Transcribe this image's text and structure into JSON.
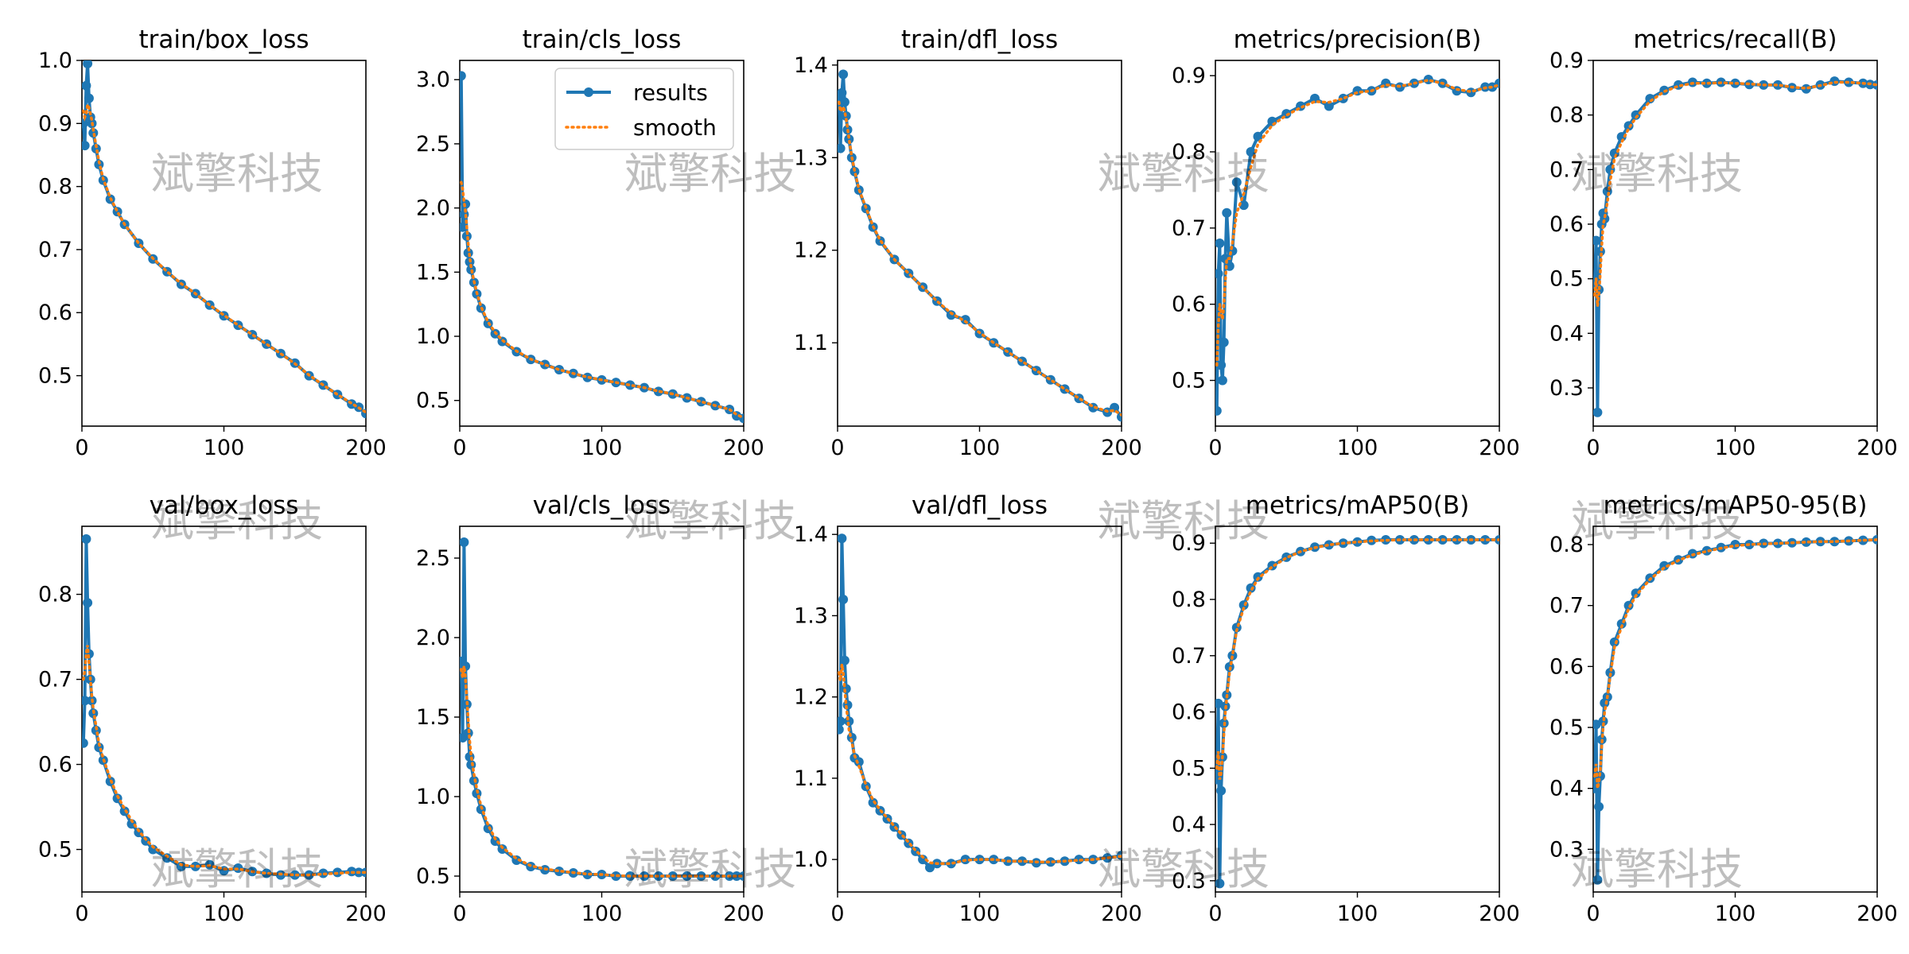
{
  "watermark": "斌擎科技",
  "legend": {
    "results_label": "results",
    "smooth_label": "smooth",
    "placement": "upper-right of train/cls_loss panel"
  },
  "colors": {
    "results": "#1f77b4",
    "smooth": "#ff7f0e",
    "axes": "#000000",
    "background": "#ffffff"
  },
  "chart_data": [
    {
      "type": "line",
      "title": "train/box_loss",
      "xlim": [
        0,
        200
      ],
      "ylim": [
        0.42,
        1.0
      ],
      "xticks": [
        0,
        100,
        200
      ],
      "yticks": [
        0.5,
        0.6,
        0.7,
        0.8,
        0.9,
        1.0
      ],
      "xtick_labels": [
        "0",
        "100",
        "200"
      ],
      "ytick_labels": [
        "0.5",
        "0.6",
        "0.7",
        "0.8",
        "0.9",
        "1.0"
      ],
      "x": [
        1,
        2,
        3,
        4,
        5,
        6,
        7,
        8,
        10,
        12,
        15,
        20,
        25,
        30,
        40,
        50,
        60,
        70,
        80,
        90,
        100,
        110,
        120,
        130,
        140,
        150,
        160,
        170,
        180,
        190,
        195,
        200
      ],
      "values": [
        0.9,
        0.865,
        0.96,
        0.995,
        0.94,
        0.91,
        0.9,
        0.885,
        0.86,
        0.835,
        0.81,
        0.78,
        0.76,
        0.74,
        0.71,
        0.685,
        0.665,
        0.645,
        0.63,
        0.612,
        0.595,
        0.58,
        0.565,
        0.55,
        0.535,
        0.52,
        0.5,
        0.485,
        0.47,
        0.455,
        0.45,
        0.44
      ],
      "smooth": [
        0.92,
        0.91,
        0.915,
        0.93,
        0.925,
        0.915,
        0.905,
        0.89,
        0.865,
        0.84,
        0.812,
        0.782,
        0.76,
        0.74,
        0.71,
        0.686,
        0.665,
        0.646,
        0.63,
        0.612,
        0.596,
        0.58,
        0.565,
        0.55,
        0.535,
        0.519,
        0.501,
        0.485,
        0.47,
        0.456,
        0.449,
        0.442
      ]
    },
    {
      "type": "line",
      "title": "train/cls_loss",
      "xlim": [
        0,
        200
      ],
      "ylim": [
        0.3,
        3.15
      ],
      "xticks": [
        0,
        100,
        200
      ],
      "yticks": [
        0.5,
        1.0,
        1.5,
        2.0,
        2.5,
        3.0
      ],
      "xtick_labels": [
        "0",
        "100",
        "200"
      ],
      "ytick_labels": [
        "0.5",
        "1.0",
        "1.5",
        "2.0",
        "2.5",
        "3.0"
      ],
      "x": [
        1,
        2,
        3,
        4,
        5,
        6,
        7,
        8,
        10,
        12,
        15,
        20,
        25,
        30,
        40,
        50,
        60,
        70,
        80,
        90,
        100,
        110,
        120,
        130,
        140,
        150,
        160,
        170,
        180,
        190,
        195,
        200
      ],
      "values": [
        3.03,
        1.85,
        1.95,
        2.03,
        1.78,
        1.65,
        1.58,
        1.52,
        1.42,
        1.33,
        1.22,
        1.1,
        1.02,
        0.96,
        0.88,
        0.82,
        0.78,
        0.74,
        0.71,
        0.68,
        0.66,
        0.64,
        0.62,
        0.6,
        0.57,
        0.55,
        0.52,
        0.49,
        0.46,
        0.43,
        0.38,
        0.36
      ],
      "smooth": [
        2.2,
        2.15,
        2.05,
        1.98,
        1.85,
        1.72,
        1.62,
        1.54,
        1.43,
        1.34,
        1.23,
        1.11,
        1.03,
        0.97,
        0.885,
        0.822,
        0.778,
        0.74,
        0.71,
        0.682,
        0.66,
        0.64,
        0.62,
        0.6,
        0.572,
        0.55,
        0.52,
        0.49,
        0.46,
        0.43,
        0.39,
        0.365
      ]
    },
    {
      "type": "line",
      "title": "train/dfl_loss",
      "xlim": [
        0,
        200
      ],
      "ylim": [
        1.01,
        1.405
      ],
      "xticks": [
        0,
        100,
        200
      ],
      "yticks": [
        1.1,
        1.2,
        1.3,
        1.4
      ],
      "xtick_labels": [
        "0",
        "100",
        "200"
      ],
      "ytick_labels": [
        "1.1",
        "1.2",
        "1.3",
        "1.4"
      ],
      "x": [
        1,
        2,
        3,
        4,
        5,
        6,
        7,
        8,
        10,
        12,
        15,
        20,
        25,
        30,
        40,
        50,
        60,
        70,
        80,
        90,
        100,
        110,
        120,
        130,
        140,
        150,
        160,
        170,
        180,
        190,
        195,
        200
      ],
      "values": [
        1.365,
        1.31,
        1.37,
        1.39,
        1.36,
        1.345,
        1.33,
        1.32,
        1.3,
        1.285,
        1.265,
        1.245,
        1.225,
        1.21,
        1.19,
        1.175,
        1.16,
        1.145,
        1.13,
        1.125,
        1.11,
        1.1,
        1.09,
        1.08,
        1.07,
        1.06,
        1.05,
        1.04,
        1.03,
        1.025,
        1.03,
        1.02
      ],
      "smooth": [
        1.36,
        1.35,
        1.352,
        1.355,
        1.35,
        1.342,
        1.332,
        1.321,
        1.301,
        1.286,
        1.266,
        1.246,
        1.226,
        1.211,
        1.19,
        1.175,
        1.16,
        1.145,
        1.132,
        1.123,
        1.111,
        1.1,
        1.09,
        1.08,
        1.07,
        1.06,
        1.05,
        1.04,
        1.031,
        1.026,
        1.027,
        1.022
      ]
    },
    {
      "type": "line",
      "title": "metrics/precision(B)",
      "xlim": [
        0,
        200
      ],
      "ylim": [
        0.44,
        0.92
      ],
      "xticks": [
        0,
        100,
        200
      ],
      "yticks": [
        0.5,
        0.6,
        0.7,
        0.8,
        0.9
      ],
      "xtick_labels": [
        "0",
        "100",
        "200"
      ],
      "ytick_labels": [
        "0.5",
        "0.6",
        "0.7",
        "0.8",
        "0.9"
      ],
      "x": [
        1,
        2,
        3,
        4,
        5,
        6,
        7,
        8,
        10,
        12,
        15,
        20,
        25,
        30,
        40,
        50,
        60,
        70,
        80,
        90,
        100,
        110,
        120,
        130,
        140,
        150,
        160,
        170,
        180,
        190,
        195,
        200
      ],
      "values": [
        0.46,
        0.64,
        0.68,
        0.52,
        0.5,
        0.55,
        0.66,
        0.72,
        0.65,
        0.67,
        0.76,
        0.73,
        0.8,
        0.82,
        0.84,
        0.85,
        0.86,
        0.87,
        0.86,
        0.87,
        0.88,
        0.88,
        0.89,
        0.885,
        0.89,
        0.895,
        0.89,
        0.88,
        0.878,
        0.885,
        0.885,
        0.89
      ],
      "smooth": [
        0.52,
        0.57,
        0.6,
        0.59,
        0.58,
        0.6,
        0.63,
        0.66,
        0.66,
        0.68,
        0.72,
        0.745,
        0.78,
        0.81,
        0.835,
        0.848,
        0.858,
        0.866,
        0.865,
        0.87,
        0.878,
        0.88,
        0.888,
        0.886,
        0.89,
        0.894,
        0.89,
        0.882,
        0.879,
        0.884,
        0.885,
        0.888
      ]
    },
    {
      "type": "line",
      "title": "metrics/recall(B)",
      "xlim": [
        0,
        200
      ],
      "ylim": [
        0.23,
        0.9
      ],
      "xticks": [
        0,
        100,
        200
      ],
      "yticks": [
        0.3,
        0.4,
        0.5,
        0.6,
        0.7,
        0.8,
        0.9
      ],
      "xtick_labels": [
        "0",
        "100",
        "200"
      ],
      "ytick_labels": [
        "0.3",
        "0.4",
        "0.5",
        "0.6",
        "0.7",
        "0.8",
        "0.9"
      ],
      "x": [
        1,
        2,
        3,
        4,
        5,
        6,
        7,
        8,
        10,
        12,
        15,
        20,
        25,
        30,
        40,
        50,
        60,
        70,
        80,
        90,
        100,
        110,
        120,
        130,
        140,
        150,
        160,
        170,
        180,
        190,
        195,
        200
      ],
      "values": [
        0.49,
        0.57,
        0.255,
        0.48,
        0.55,
        0.6,
        0.62,
        0.61,
        0.66,
        0.7,
        0.73,
        0.76,
        0.78,
        0.8,
        0.83,
        0.845,
        0.855,
        0.86,
        0.858,
        0.86,
        0.858,
        0.856,
        0.855,
        0.855,
        0.85,
        0.848,
        0.855,
        0.862,
        0.86,
        0.858,
        0.856,
        0.855
      ],
      "smooth": [
        0.47,
        0.5,
        0.45,
        0.47,
        0.51,
        0.56,
        0.6,
        0.61,
        0.64,
        0.68,
        0.72,
        0.75,
        0.775,
        0.795,
        0.825,
        0.843,
        0.853,
        0.858,
        0.858,
        0.859,
        0.858,
        0.857,
        0.855,
        0.855,
        0.851,
        0.849,
        0.854,
        0.86,
        0.86,
        0.858,
        0.857,
        0.855
      ]
    },
    {
      "type": "line",
      "title": "val/box_loss",
      "xlim": [
        0,
        200
      ],
      "ylim": [
        0.45,
        0.88
      ],
      "xticks": [
        0,
        100,
        200
      ],
      "yticks": [
        0.5,
        0.6,
        0.7,
        0.8
      ],
      "xtick_labels": [
        "0",
        "100",
        "200"
      ],
      "ytick_labels": [
        "0.5",
        "0.6",
        "0.7",
        "0.8"
      ],
      "x": [
        1,
        2,
        3,
        4,
        5,
        6,
        7,
        8,
        10,
        12,
        15,
        20,
        25,
        30,
        35,
        40,
        45,
        50,
        60,
        70,
        80,
        90,
        100,
        110,
        120,
        130,
        140,
        150,
        160,
        170,
        180,
        190,
        195,
        200
      ],
      "values": [
        0.625,
        0.675,
        0.865,
        0.79,
        0.73,
        0.7,
        0.675,
        0.66,
        0.64,
        0.62,
        0.605,
        0.58,
        0.56,
        0.545,
        0.53,
        0.52,
        0.51,
        0.5,
        0.49,
        0.48,
        0.48,
        0.482,
        0.475,
        0.478,
        0.474,
        0.472,
        0.47,
        0.47,
        0.47,
        0.472,
        0.473,
        0.474,
        0.473,
        0.473
      ],
      "smooth": [
        0.7,
        0.71,
        0.73,
        0.74,
        0.72,
        0.7,
        0.68,
        0.665,
        0.645,
        0.625,
        0.607,
        0.583,
        0.563,
        0.548,
        0.534,
        0.522,
        0.512,
        0.503,
        0.492,
        0.482,
        0.48,
        0.481,
        0.477,
        0.477,
        0.474,
        0.472,
        0.471,
        0.47,
        0.47,
        0.471,
        0.472,
        0.473,
        0.473,
        0.473
      ]
    },
    {
      "type": "line",
      "title": "val/cls_loss",
      "xlim": [
        0,
        200
      ],
      "ylim": [
        0.4,
        2.7
      ],
      "xticks": [
        0,
        100,
        200
      ],
      "yticks": [
        0.5,
        1.0,
        1.5,
        2.0,
        2.5
      ],
      "xtick_labels": [
        "0",
        "100",
        "200"
      ],
      "ytick_labels": [
        "0.5",
        "1.0",
        "1.5",
        "2.0",
        "2.5"
      ],
      "x": [
        1,
        2,
        3,
        4,
        5,
        6,
        7,
        8,
        10,
        12,
        15,
        20,
        25,
        30,
        40,
        50,
        60,
        70,
        80,
        90,
        100,
        110,
        120,
        130,
        140,
        150,
        160,
        170,
        180,
        190,
        195,
        200
      ],
      "values": [
        1.85,
        1.37,
        2.6,
        1.82,
        1.58,
        1.4,
        1.25,
        1.2,
        1.1,
        1.02,
        0.92,
        0.8,
        0.72,
        0.67,
        0.6,
        0.56,
        0.54,
        0.53,
        0.52,
        0.51,
        0.51,
        0.5,
        0.5,
        0.5,
        0.5,
        0.5,
        0.5,
        0.5,
        0.5,
        0.5,
        0.5,
        0.5
      ],
      "smooth": [
        1.8,
        1.75,
        1.82,
        1.75,
        1.62,
        1.48,
        1.35,
        1.26,
        1.14,
        1.05,
        0.94,
        0.82,
        0.735,
        0.68,
        0.61,
        0.565,
        0.545,
        0.532,
        0.522,
        0.513,
        0.51,
        0.503,
        0.5,
        0.5,
        0.5,
        0.5,
        0.5,
        0.5,
        0.5,
        0.5,
        0.5,
        0.5
      ]
    },
    {
      "type": "line",
      "title": "val/dfl_loss",
      "xlim": [
        0,
        200
      ],
      "ylim": [
        0.96,
        1.41
      ],
      "xticks": [
        0,
        100,
        200
      ],
      "yticks": [
        1.0,
        1.1,
        1.2,
        1.3,
        1.4
      ],
      "xtick_labels": [
        "0",
        "100",
        "200"
      ],
      "ytick_labels": [
        "1.0",
        "1.1",
        "1.2",
        "1.3",
        "1.4"
      ],
      "x": [
        1,
        2,
        3,
        4,
        5,
        6,
        7,
        8,
        10,
        12,
        15,
        20,
        25,
        30,
        35,
        40,
        45,
        50,
        55,
        60,
        65,
        70,
        80,
        90,
        100,
        110,
        120,
        130,
        140,
        150,
        160,
        170,
        180,
        190,
        200
      ],
      "values": [
        1.16,
        1.17,
        1.395,
        1.32,
        1.245,
        1.21,
        1.19,
        1.17,
        1.15,
        1.125,
        1.12,
        1.09,
        1.07,
        1.06,
        1.05,
        1.04,
        1.03,
        1.02,
        1.01,
        1.0,
        0.99,
        0.995,
        0.995,
        1.0,
        1.0,
        1.0,
        0.998,
        0.998,
        0.996,
        0.997,
        0.998,
        1.0,
        1.0,
        1.002,
        1.005
      ],
      "smooth": [
        1.23,
        1.22,
        1.24,
        1.23,
        1.21,
        1.19,
        1.175,
        1.16,
        1.145,
        1.128,
        1.115,
        1.092,
        1.073,
        1.061,
        1.051,
        1.041,
        1.031,
        1.021,
        1.011,
        1.003,
        0.996,
        0.995,
        0.995,
        0.999,
        1.0,
        1.0,
        0.998,
        0.998,
        0.997,
        0.997,
        0.998,
        0.999,
        1.0,
        1.002,
        1.004
      ]
    },
    {
      "type": "line",
      "title": "metrics/mAP50(B)",
      "xlim": [
        0,
        200
      ],
      "ylim": [
        0.28,
        0.93
      ],
      "xticks": [
        0,
        100,
        200
      ],
      "yticks": [
        0.3,
        0.4,
        0.5,
        0.6,
        0.7,
        0.8,
        0.9
      ],
      "xtick_labels": [
        "0",
        "100",
        "200"
      ],
      "ytick_labels": [
        "0.3",
        "0.4",
        "0.5",
        "0.6",
        "0.7",
        "0.8",
        "0.9"
      ],
      "x": [
        1,
        2,
        3,
        4,
        5,
        6,
        7,
        8,
        10,
        12,
        15,
        20,
        25,
        30,
        40,
        50,
        60,
        70,
        80,
        90,
        100,
        110,
        120,
        130,
        140,
        150,
        160,
        170,
        180,
        190,
        200
      ],
      "values": [
        0.48,
        0.615,
        0.295,
        0.46,
        0.52,
        0.58,
        0.61,
        0.63,
        0.68,
        0.7,
        0.75,
        0.79,
        0.82,
        0.84,
        0.86,
        0.875,
        0.885,
        0.893,
        0.897,
        0.9,
        0.902,
        0.905,
        0.906,
        0.906,
        0.906,
        0.906,
        0.906,
        0.906,
        0.906,
        0.906,
        0.906
      ],
      "smooth": [
        0.5,
        0.53,
        0.48,
        0.49,
        0.52,
        0.56,
        0.6,
        0.625,
        0.67,
        0.7,
        0.745,
        0.785,
        0.815,
        0.837,
        0.858,
        0.874,
        0.885,
        0.892,
        0.897,
        0.9,
        0.902,
        0.904,
        0.905,
        0.906,
        0.906,
        0.906,
        0.906,
        0.906,
        0.906,
        0.906,
        0.906
      ]
    },
    {
      "type": "line",
      "title": "metrics/mAP50-95(B)",
      "xlim": [
        0,
        200
      ],
      "ylim": [
        0.23,
        0.83
      ],
      "xticks": [
        0,
        100,
        200
      ],
      "yticks": [
        0.3,
        0.4,
        0.5,
        0.6,
        0.7,
        0.8
      ],
      "xtick_labels": [
        "0",
        "100",
        "200"
      ],
      "ytick_labels": [
        "0.3",
        "0.4",
        "0.5",
        "0.6",
        "0.7",
        "0.8"
      ],
      "x": [
        1,
        2,
        3,
        4,
        5,
        6,
        7,
        8,
        10,
        12,
        15,
        20,
        25,
        30,
        40,
        50,
        60,
        70,
        80,
        90,
        100,
        110,
        120,
        130,
        140,
        150,
        160,
        170,
        180,
        190,
        200
      ],
      "values": [
        0.4,
        0.505,
        0.25,
        0.37,
        0.42,
        0.48,
        0.51,
        0.54,
        0.55,
        0.59,
        0.64,
        0.67,
        0.7,
        0.72,
        0.745,
        0.765,
        0.775,
        0.785,
        0.79,
        0.795,
        0.8,
        0.8,
        0.802,
        0.802,
        0.803,
        0.804,
        0.805,
        0.805,
        0.806,
        0.807,
        0.808
      ],
      "smooth": [
        0.42,
        0.44,
        0.4,
        0.41,
        0.43,
        0.47,
        0.5,
        0.525,
        0.55,
        0.585,
        0.632,
        0.665,
        0.695,
        0.716,
        0.743,
        0.762,
        0.774,
        0.783,
        0.789,
        0.794,
        0.798,
        0.8,
        0.801,
        0.802,
        0.803,
        0.804,
        0.805,
        0.805,
        0.806,
        0.807,
        0.808
      ]
    }
  ]
}
